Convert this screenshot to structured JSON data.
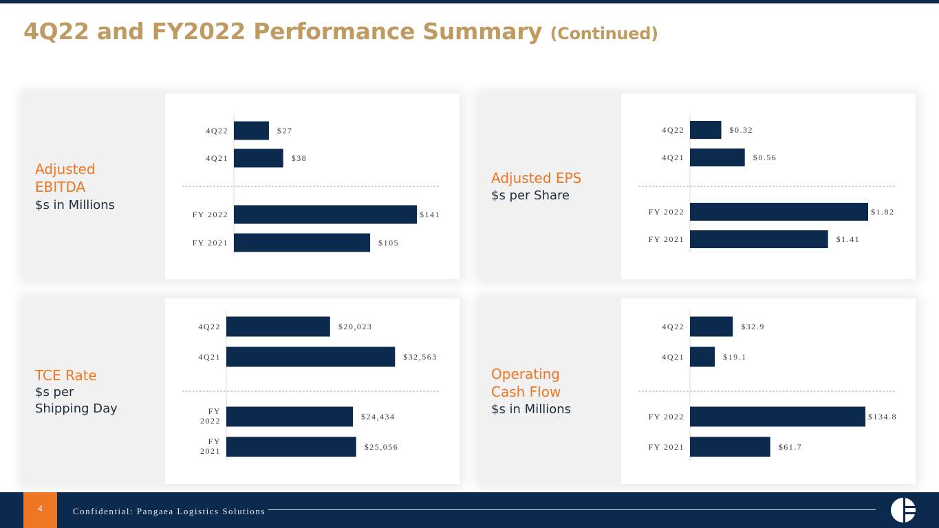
{
  "title": {
    "main": "4Q22 and FY2022 Performance Summary",
    "sub": "(Continued)"
  },
  "footer": {
    "page_number": "4",
    "confidential": "Confidential: Pangaea Logistics Solutions"
  },
  "colors": {
    "navy": "#0c2a4e",
    "gold": "#bf9b62",
    "orange": "#ec7623",
    "bar": "#0c2a4e"
  },
  "cards": [
    {
      "id": "ebitda",
      "title_lines": [
        "Adjusted",
        "EBITDA"
      ],
      "unit_lines": [
        "$s in Millions"
      ],
      "chart_data": {
        "type": "bar",
        "orientation": "horizontal",
        "title": "Adjusted EBITDA",
        "unit": "$s in Millions",
        "categories": [
          [
            "4Q22"
          ],
          [
            "4Q21"
          ],
          [
            "FY 2022"
          ],
          [
            "FY 2021"
          ]
        ],
        "values": [
          27,
          38,
          141,
          105
        ],
        "labels": [
          "$27",
          "$38",
          "$141",
          "$105"
        ],
        "xlim": [
          0,
          141
        ],
        "separator_after": 1
      }
    },
    {
      "id": "eps",
      "title_lines": [
        "Adjusted EPS"
      ],
      "unit_lines": [
        "$s per Share"
      ],
      "chart_data": {
        "type": "bar",
        "orientation": "horizontal",
        "title": "Adjusted EPS",
        "unit": "$s per Share",
        "categories": [
          [
            "4Q22"
          ],
          [
            "4Q21"
          ],
          [
            "FY 2022"
          ],
          [
            "FY 2021"
          ]
        ],
        "values": [
          0.32,
          0.56,
          1.82,
          1.41
        ],
        "labels": [
          "$0.32",
          "$0.56",
          "$1.82",
          "$1.41"
        ],
        "xlim": [
          0,
          1.82
        ],
        "separator_after": 1
      }
    },
    {
      "id": "tce",
      "title_lines": [
        "TCE Rate"
      ],
      "unit_lines": [
        "$s per",
        "Shipping Day"
      ],
      "chart_data": {
        "type": "bar",
        "orientation": "horizontal",
        "title": "TCE Rate",
        "unit": "$s per Shipping Day",
        "categories": [
          [
            "4Q22"
          ],
          [
            "4Q21"
          ],
          [
            "FY",
            "2022"
          ],
          [
            "FY",
            "2021"
          ]
        ],
        "values": [
          20023,
          32563,
          24434,
          25056
        ],
        "labels": [
          "$20,023",
          "$32,563",
          "$24,434",
          "$25,056"
        ],
        "xlim": [
          0,
          38500
        ],
        "separator_after": 1
      }
    },
    {
      "id": "ocf",
      "title_lines": [
        "Operating",
        "Cash Flow"
      ],
      "unit_lines": [
        "$s in Millions"
      ],
      "chart_data": {
        "type": "bar",
        "orientation": "horizontal",
        "title": "Operating Cash Flow",
        "unit": "$s in Millions",
        "categories": [
          [
            "4Q22"
          ],
          [
            "4Q21"
          ],
          [
            "FY 2022"
          ],
          [
            "FY 2021"
          ]
        ],
        "values": [
          32.9,
          19.1,
          134.8,
          61.7
        ],
        "labels": [
          "$32.9",
          "$19.1",
          "$134.8",
          "$61.7"
        ],
        "xlim": [
          0,
          134.8
        ],
        "separator_after": 1
      }
    }
  ]
}
